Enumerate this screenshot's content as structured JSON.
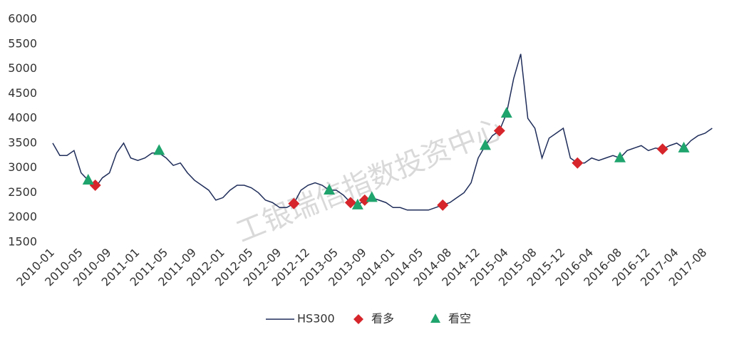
{
  "chart_data": {
    "type": "line",
    "watermark": "工银瑞信指数投资中心",
    "categories": [
      "2010-01",
      null,
      null,
      null,
      "2010-05",
      null,
      null,
      null,
      "2010-09",
      null,
      null,
      null,
      "2011-01",
      null,
      null,
      null,
      "2011-05",
      null,
      null,
      null,
      "2011-09",
      null,
      null,
      null,
      "2012-01",
      null,
      null,
      null,
      "2012-05",
      null,
      null,
      null,
      "2012-09",
      null,
      null,
      null,
      "2012-12",
      null,
      null,
      null,
      "2013-05",
      null,
      null,
      null,
      "2013-09",
      null,
      null,
      null,
      "2014-01",
      null,
      null,
      null,
      "2014-05",
      null,
      null,
      null,
      "2014-08",
      null,
      null,
      null,
      "2014-12",
      null,
      null,
      null,
      "2015-04",
      null,
      null,
      null,
      "2015-08",
      null,
      null,
      null,
      "2015-12",
      null,
      null,
      null,
      "2016-04",
      null,
      null,
      null,
      "2016-08",
      null,
      null,
      null,
      "2016-12",
      null,
      null,
      null,
      "2017-04",
      null,
      null,
      null,
      "2017-08",
      null
    ],
    "series": [
      {
        "name": "HS300",
        "color": "#1f2d5a",
        "marker": "line",
        "values": [
          3500,
          3250,
          3250,
          3350,
          2900,
          2750,
          2600,
          2800,
          2900,
          3300,
          3500,
          3200,
          3150,
          3200,
          3300,
          3300,
          3200,
          3050,
          3100,
          2900,
          2750,
          2650,
          2550,
          2350,
          2400,
          2550,
          2650,
          2650,
          2600,
          2500,
          2350,
          2300,
          2200,
          2200,
          2280,
          2550,
          2650,
          2700,
          2650,
          2550,
          2550,
          2450,
          2300,
          2250,
          2350,
          2400,
          2350,
          2300,
          2200,
          2200,
          2150,
          2150,
          2150,
          2150,
          2200,
          2250,
          2300,
          2400,
          2500,
          2700,
          3200,
          3450,
          3650,
          3750,
          4100,
          4800,
          5300,
          4000,
          3800,
          3200,
          3600,
          3700,
          3800,
          3200,
          3100,
          3100,
          3200,
          3150,
          3200,
          3250,
          3200,
          3350,
          3400,
          3450,
          3350,
          3400,
          3380,
          3450,
          3500,
          3400,
          3550,
          3650,
          3700,
          3800
        ]
      },
      {
        "name": "看多",
        "color": "#d7262b",
        "marker": "diamond",
        "values": [
          null,
          null,
          null,
          null,
          null,
          null,
          2650,
          null,
          null,
          null,
          null,
          null,
          null,
          null,
          null,
          null,
          null,
          null,
          null,
          null,
          null,
          null,
          null,
          null,
          null,
          null,
          null,
          null,
          null,
          null,
          null,
          null,
          null,
          null,
          2280,
          null,
          null,
          null,
          null,
          null,
          null,
          null,
          2300,
          null,
          2350,
          null,
          null,
          null,
          null,
          null,
          null,
          null,
          null,
          null,
          null,
          2250,
          null,
          null,
          null,
          null,
          null,
          null,
          null,
          3750,
          null,
          null,
          null,
          null,
          null,
          null,
          null,
          null,
          null,
          null,
          3100,
          null,
          null,
          null,
          null,
          null,
          null,
          null,
          null,
          null,
          null,
          null,
          3380,
          null,
          null,
          null,
          null,
          null,
          null,
          null
        ]
      },
      {
        "name": "看空",
        "color": "#1fa46e",
        "marker": "triangle",
        "values": [
          null,
          null,
          null,
          null,
          null,
          2750,
          null,
          null,
          null,
          null,
          null,
          null,
          null,
          null,
          null,
          3350,
          null,
          null,
          null,
          null,
          null,
          null,
          null,
          null,
          null,
          null,
          null,
          null,
          null,
          null,
          null,
          null,
          null,
          null,
          null,
          null,
          null,
          null,
          null,
          2550,
          null,
          null,
          null,
          2250,
          null,
          2400,
          null,
          null,
          null,
          null,
          null,
          null,
          null,
          null,
          null,
          null,
          null,
          null,
          null,
          null,
          null,
          3450,
          null,
          null,
          4100,
          null,
          null,
          null,
          null,
          null,
          null,
          null,
          null,
          null,
          null,
          null,
          null,
          null,
          null,
          null,
          3200,
          null,
          null,
          null,
          null,
          null,
          null,
          null,
          null,
          3400,
          null,
          null,
          null,
          null
        ]
      }
    ],
    "ylim": [
      1500,
      6000
    ],
    "yticks": [
      1500,
      2000,
      2500,
      3000,
      3500,
      4000,
      4500,
      5000,
      5500,
      6000
    ],
    "grid": false
  }
}
